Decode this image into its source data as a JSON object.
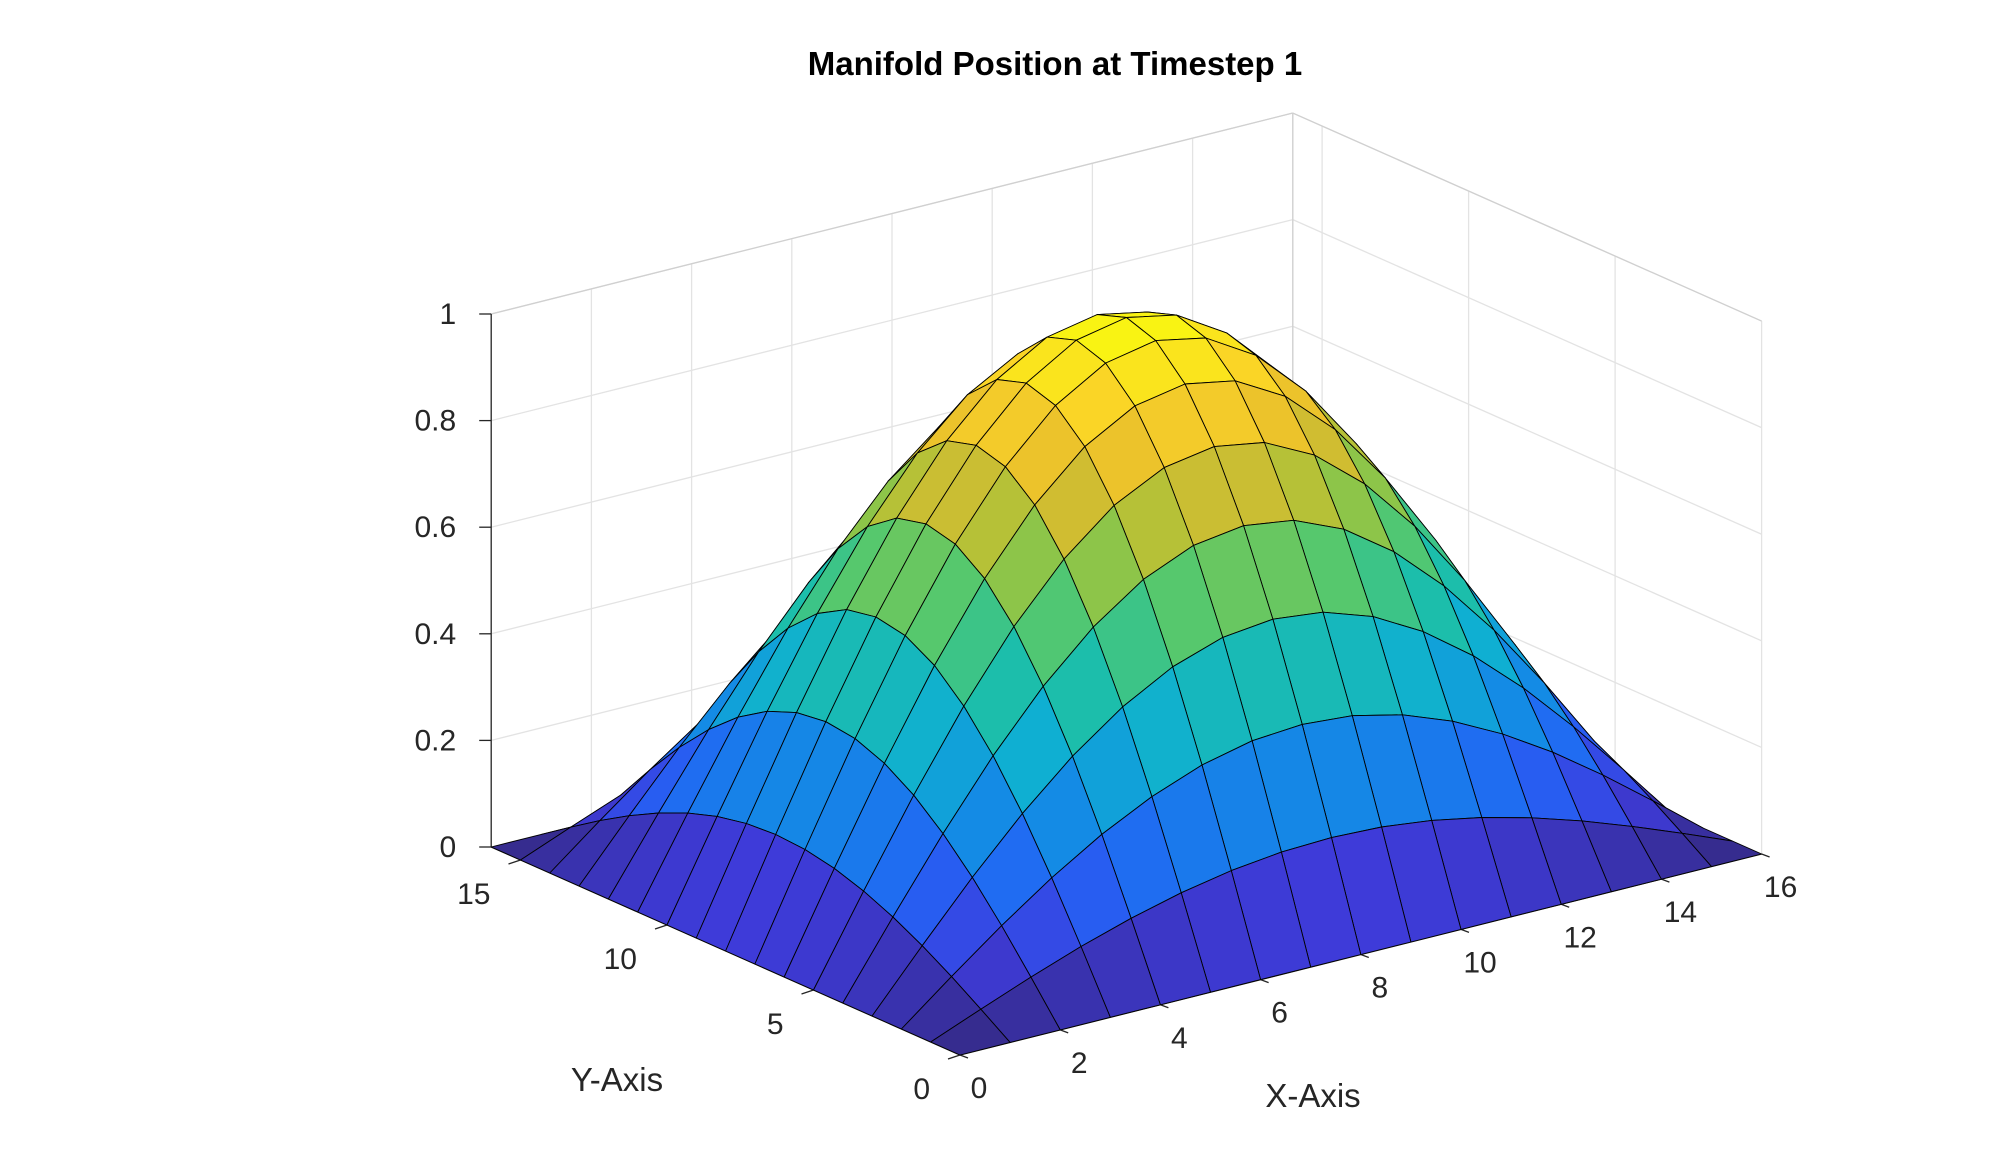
{
  "chart_data": {
    "type": "surface",
    "title": "Manifold Position at Timestep 1",
    "xlabel": "X-Axis",
    "ylabel": "Y-Axis",
    "zlabel": "",
    "xlim": [
      0,
      16
    ],
    "ylim": [
      0,
      16
    ],
    "zlim": [
      0,
      1
    ],
    "x_ticks": [
      "0",
      "2",
      "4",
      "6",
      "8",
      "10",
      "12",
      "14",
      "16"
    ],
    "y_ticks": [
      "0",
      "5",
      "10",
      "15"
    ],
    "z_ticks": [
      "0",
      "0.2",
      "0.4",
      "0.6",
      "0.8",
      "1"
    ],
    "grid": true,
    "colormap": "parula",
    "function": "z = sin(pi*x/16) * sin(pi*y/16)",
    "grid_size": [
      17,
      17
    ],
    "x": [
      0,
      1,
      2,
      3,
      4,
      5,
      6,
      7,
      8,
      9,
      10,
      11,
      12,
      13,
      14,
      15,
      16
    ],
    "y": [
      0,
      1,
      2,
      3,
      4,
      5,
      6,
      7,
      8,
      9,
      10,
      11,
      12,
      13,
      14,
      15,
      16
    ],
    "z_profile": [
      0,
      0.195,
      0.383,
      0.556,
      0.707,
      0.831,
      0.924,
      0.981,
      1.0,
      0.981,
      0.924,
      0.831,
      0.707,
      0.556,
      0.383,
      0.195,
      0
    ],
    "colors": {
      "background": "#ffffff",
      "axis": "#262626",
      "grid": "#e3e3e3",
      "edge": "#000000"
    }
  }
}
